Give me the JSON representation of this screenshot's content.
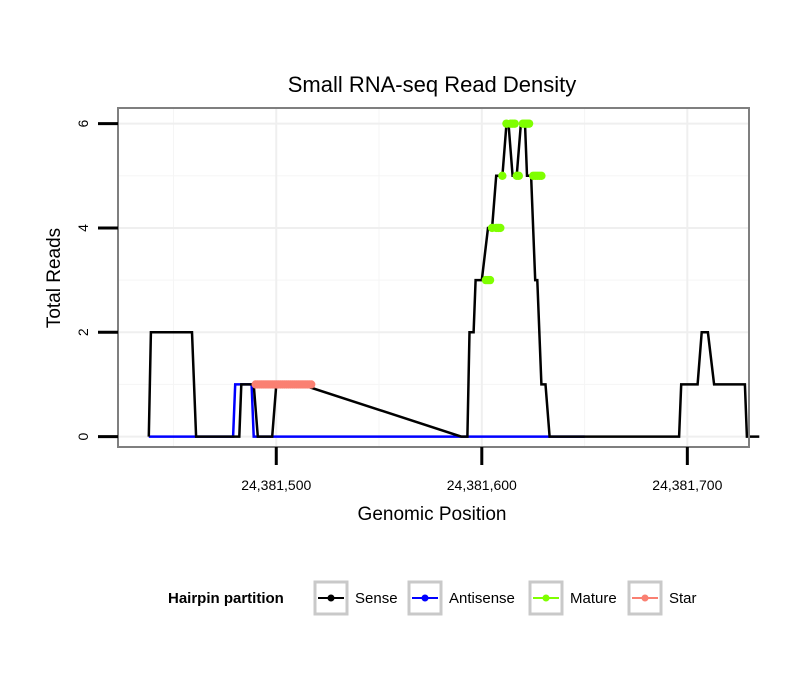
{
  "chart_data": {
    "type": "line",
    "title": "Small RNA-seq Read Density",
    "xlabel": "Genomic Position",
    "ylabel": "Total Reads",
    "xlim": [
      24381423,
      24381730
    ],
    "ylim": [
      -0.2,
      6.3
    ],
    "grid": true,
    "x_ticks": [
      {
        "value": 24381500,
        "label": "24,381,500"
      },
      {
        "value": 24381600,
        "label": "24,381,600"
      },
      {
        "value": 24381700,
        "label": "24,381,700"
      }
    ],
    "y_ticks": [
      {
        "value": 0,
        "label": "0"
      },
      {
        "value": 2,
        "label": "2"
      },
      {
        "value": 4,
        "label": "4"
      },
      {
        "value": 6,
        "label": "6"
      }
    ],
    "x_minor_grid": [
      24381450,
      24381550,
      24381650
    ],
    "y_minor_grid": [
      1,
      3,
      5
    ],
    "legend": {
      "title": "Hairpin partition",
      "placement": "bottom",
      "entries": [
        "Sense",
        "Antisense",
        "Mature",
        "Star"
      ]
    },
    "series": [
      {
        "name": "Sense",
        "color": "#000000",
        "kind": "line",
        "x": [
          24381438,
          24381439,
          24381459,
          24381461,
          24381482,
          24381483,
          24381489,
          24381491,
          24381498,
          24381500,
          24381512,
          24381590,
          24381593,
          24381594,
          24381596,
          24381597,
          24381600,
          24381603,
          24381605,
          24381607,
          24381610,
          24381612,
          24381613,
          24381615,
          24381617,
          24381619,
          24381621,
          24381622,
          24381624,
          24381626,
          24381627,
          24381629,
          24381631,
          24381633,
          24381640,
          24381680,
          24381696,
          24381697,
          24381705,
          24381707,
          24381710,
          24381713,
          24381718,
          24381728,
          24381729,
          24381735
        ],
        "y": [
          0,
          2,
          2,
          0,
          0,
          1,
          1,
          0,
          0,
          1,
          1,
          0,
          0,
          2,
          2,
          3,
          3,
          4,
          4,
          5,
          5,
          6,
          6,
          5,
          5,
          6,
          6,
          5,
          5,
          3,
          3,
          1,
          1,
          0,
          0,
          0,
          0,
          1,
          1,
          2,
          2,
          1,
          1,
          1,
          0,
          0
        ]
      },
      {
        "name": "Antisense",
        "color": "#0000ff",
        "kind": "line",
        "x": [
          24381438,
          24381479,
          24381480,
          24381488,
          24381489,
          24381650
        ],
        "y": [
          0,
          0,
          1,
          1,
          0,
          0
        ]
      },
      {
        "name": "Mature",
        "color": "#7fff00",
        "kind": "points",
        "x": [
          24381602,
          24381603,
          24381604,
          24381605,
          24381607,
          24381608,
          24381609,
          24381610,
          24381612,
          24381614,
          24381615,
          24381616,
          24381617,
          24381618,
          24381620,
          24381621,
          24381622,
          24381623,
          24381625,
          24381626,
          24381627,
          24381628,
          24381629
        ],
        "y": [
          3,
          3,
          3,
          4,
          4,
          4,
          4,
          5,
          6,
          6,
          6,
          6,
          5,
          5,
          6,
          6,
          6,
          6,
          5,
          5,
          5,
          5,
          5
        ]
      },
      {
        "name": "Star",
        "color": "#fa8072",
        "kind": "points",
        "x": [
          24381490,
          24381491,
          24381492,
          24381493,
          24381494,
          24381495,
          24381496,
          24381497,
          24381498,
          24381499,
          24381500,
          24381501,
          24381502,
          24381503,
          24381504,
          24381505,
          24381506,
          24381507,
          24381508,
          24381509,
          24381510,
          24381511,
          24381512,
          24381513,
          24381514,
          24381515,
          24381516,
          24381517
        ],
        "y": [
          1,
          1,
          1,
          1,
          1,
          1,
          1,
          1,
          1,
          1,
          1,
          1,
          1,
          1,
          1,
          1,
          1,
          1,
          1,
          1,
          1,
          1,
          1,
          1,
          1,
          1,
          1,
          1
        ]
      }
    ]
  }
}
